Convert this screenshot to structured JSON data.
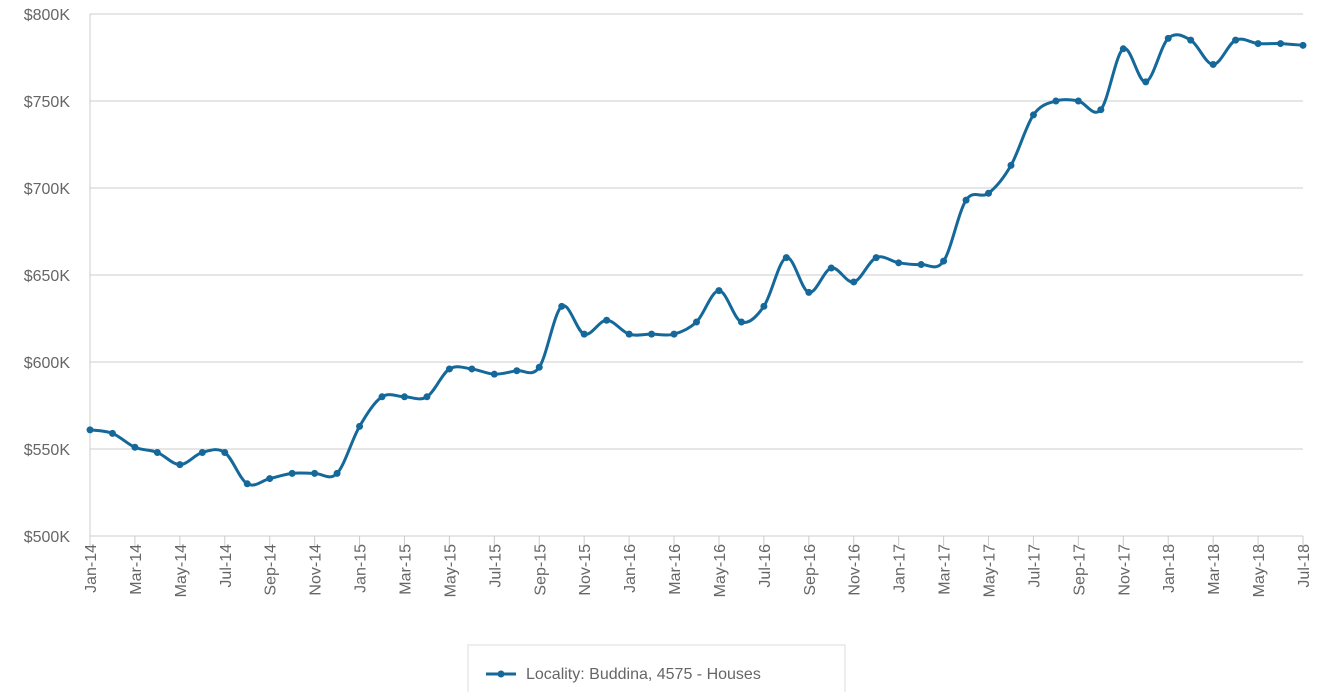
{
  "chart_data": {
    "type": "line",
    "categories": [
      "Jan-14",
      null,
      "Mar-14",
      null,
      "May-14",
      null,
      "Jul-14",
      null,
      "Sep-14",
      null,
      "Nov-14",
      null,
      "Jan-15",
      null,
      "Mar-15",
      null,
      "May-15",
      null,
      "Jul-15",
      null,
      "Sep-15",
      null,
      "Nov-15",
      null,
      "Jan-16",
      null,
      "Mar-16",
      null,
      "May-16",
      null,
      "Jul-16",
      null,
      "Sep-16",
      null,
      "Nov-16",
      null,
      "Jan-17",
      null,
      "Mar-17",
      null,
      "May-17",
      null,
      "Jul-17",
      null,
      "Sep-17",
      null,
      "Nov-17",
      null,
      "Jan-18",
      null,
      "Mar-18",
      null,
      "May-18",
      null,
      "Jul-18"
    ],
    "series": [
      {
        "name": "Locality: Buddina, 4575 - Houses",
        "color": "#14689a",
        "values": [
          561,
          559,
          551,
          548,
          541,
          548,
          548,
          530,
          533,
          536,
          536,
          536,
          563,
          580,
          580,
          580,
          596,
          596,
          593,
          595,
          597,
          632,
          616,
          624,
          616,
          616,
          616,
          623,
          641,
          623,
          632,
          660,
          640,
          654,
          646,
          660,
          657,
          656,
          658,
          693,
          697,
          713,
          742,
          750,
          750,
          745,
          780,
          761,
          786,
          785,
          771,
          785,
          783,
          783,
          782
        ]
      }
    ],
    "ylim": [
      500,
      800
    ],
    "yticks": [
      {
        "value": 500,
        "label": "$500K"
      },
      {
        "value": 550,
        "label": "$550K"
      },
      {
        "value": 600,
        "label": "$600K"
      },
      {
        "value": 650,
        "label": "$650K"
      },
      {
        "value": 700,
        "label": "$700K"
      },
      {
        "value": 750,
        "label": "$750K"
      },
      {
        "value": 800,
        "label": "$800K"
      }
    ],
    "grid": true,
    "legend": "bottom"
  }
}
